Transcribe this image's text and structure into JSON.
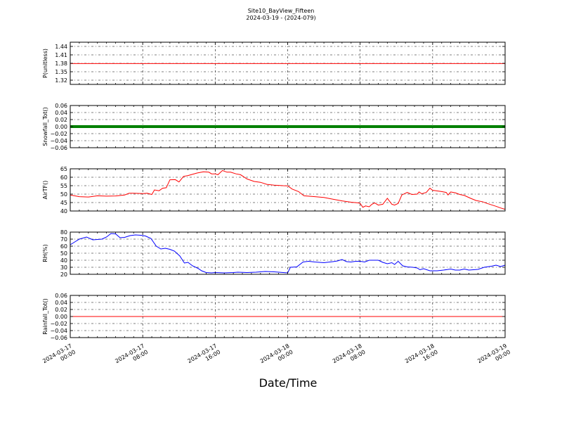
{
  "title": "Site10_BayView_Fifteen",
  "subtitle": "2024-03-19 - (2024-079)",
  "xlabel": "Date/Time",
  "x_ticks": [
    {
      "t": 0,
      "line1": "2024-03-17",
      "line2": "00:00"
    },
    {
      "t": 8,
      "line1": "2024-03-17",
      "line2": "08:00"
    },
    {
      "t": 16,
      "line1": "2024-03-17",
      "line2": "16:00"
    },
    {
      "t": 24,
      "line1": "2024-03-18",
      "line2": "00:00"
    },
    {
      "t": 32,
      "line1": "2024-03-18",
      "line2": "08:00"
    },
    {
      "t": 40,
      "line1": "2024-03-18",
      "line2": "16:00"
    },
    {
      "t": 48,
      "line1": "2024-03-19",
      "line2": "00:00"
    }
  ],
  "chart_data": [
    {
      "type": "line",
      "ylabel": "P(unitless)",
      "ylim": [
        1.305,
        1.455
      ],
      "yticks": [
        1.32,
        1.35,
        1.38,
        1.41,
        1.44
      ],
      "ytick_labels": [
        "1.32",
        "1.35",
        "1.38",
        "1.41",
        "1.44"
      ],
      "series": [
        {
          "color": "#ff0000",
          "points": [
            [
              0,
              1.379
            ],
            [
              48,
              1.379
            ]
          ]
        }
      ]
    },
    {
      "type": "line",
      "ylabel": "Snowfall_Tot()",
      "ylim": [
        -0.06,
        0.06
      ],
      "yticks": [
        -0.06,
        -0.04,
        -0.02,
        0.0,
        0.02,
        0.04,
        0.06
      ],
      "ytick_labels": [
        "−0.06",
        "−0.04",
        "−0.02",
        "0.00",
        "0.02",
        "0.04",
        "0.06"
      ],
      "series": [
        {
          "color": "#008000",
          "points": [
            [
              0,
              0.0
            ],
            [
              48,
              0.0
            ]
          ],
          "thick": true
        }
      ]
    },
    {
      "type": "line",
      "ylabel": "AirTF()",
      "ylim": [
        40,
        65
      ],
      "yticks": [
        40,
        45,
        50,
        55,
        60,
        65
      ],
      "ytick_labels": [
        "40",
        "45",
        "50",
        "55",
        "60",
        "65"
      ],
      "series": [
        {
          "color": "#ff0000",
          "points": [
            [
              0,
              49.5
            ],
            [
              1,
              48.5
            ],
            [
              2,
              48.3
            ],
            [
              3,
              49
            ],
            [
              4,
              48.8
            ],
            [
              5,
              48.9
            ],
            [
              6,
              49.5
            ],
            [
              6.5,
              50.5
            ],
            [
              7,
              50.5
            ],
            [
              8,
              50.3
            ],
            [
              8.5,
              50.5
            ],
            [
              9,
              49.8
            ],
            [
              9.3,
              52.5
            ],
            [
              9.8,
              52
            ],
            [
              10.2,
              53.5
            ],
            [
              10.6,
              53.8
            ],
            [
              11,
              58.5
            ],
            [
              11.6,
              58.6
            ],
            [
              12,
              57.2
            ],
            [
              12.5,
              60.5
            ],
            [
              13,
              61
            ],
            [
              14,
              62.5
            ],
            [
              14.7,
              63.2
            ],
            [
              15.3,
              63
            ],
            [
              15.6,
              62
            ],
            [
              16,
              62
            ],
            [
              16.3,
              61.5
            ],
            [
              16.8,
              64
            ],
            [
              17.3,
              63
            ],
            [
              17.7,
              63
            ],
            [
              18.3,
              62
            ],
            [
              18.8,
              61.5
            ],
            [
              19.5,
              59
            ],
            [
              20.3,
              57.5
            ],
            [
              21,
              57
            ],
            [
              21.7,
              55.8
            ],
            [
              22.5,
              55.3
            ],
            [
              23.5,
              55
            ],
            [
              24,
              54.9
            ],
            [
              24.5,
              53
            ],
            [
              25.2,
              51.5
            ],
            [
              25.8,
              49
            ],
            [
              27,
              48.5
            ],
            [
              28,
              48
            ],
            [
              29,
              47
            ],
            [
              30,
              46
            ],
            [
              31,
              45.2
            ],
            [
              31.8,
              44.8
            ],
            [
              32,
              44.5
            ],
            [
              32.3,
              42.2
            ],
            [
              32.6,
              43
            ],
            [
              33,
              42.5
            ],
            [
              33.3,
              44
            ],
            [
              33.6,
              44.8
            ],
            [
              34,
              43.5
            ],
            [
              34.5,
              44
            ],
            [
              35,
              47.5
            ],
            [
              35.5,
              44
            ],
            [
              35.8,
              43.5
            ],
            [
              36.2,
              44.5
            ],
            [
              36.6,
              49.5
            ],
            [
              37.2,
              51
            ],
            [
              37.7,
              49.8
            ],
            [
              38.3,
              50
            ],
            [
              38.5,
              51.3
            ],
            [
              38.8,
              50.2
            ],
            [
              39.3,
              51
            ],
            [
              39.7,
              53.5
            ],
            [
              40,
              52.3
            ],
            [
              41,
              51.5
            ],
            [
              41.5,
              51
            ],
            [
              41.7,
              49.5
            ],
            [
              42,
              51.3
            ],
            [
              42.5,
              50.8
            ],
            [
              43,
              49.8
            ],
            [
              43.5,
              49.2
            ],
            [
              44.2,
              47.5
            ],
            [
              44.8,
              46.2
            ],
            [
              45.5,
              45.5
            ],
            [
              46,
              44.5
            ],
            [
              47,
              42.8
            ],
            [
              47.5,
              41.8
            ],
            [
              48,
              41
            ]
          ]
        }
      ]
    },
    {
      "type": "line",
      "ylabel": "RH(%)",
      "ylim": [
        20,
        80
      ],
      "yticks": [
        20,
        30,
        40,
        50,
        60,
        70,
        80
      ],
      "ytick_labels": [
        "20",
        "30",
        "40",
        "50",
        "60",
        "70",
        "80"
      ],
      "series": [
        {
          "color": "#0000ff",
          "points": [
            [
              0,
              62
            ],
            [
              0.5,
              66
            ],
            [
              1,
              70
            ],
            [
              1.8,
              73
            ],
            [
              2.5,
              69
            ],
            [
              3.5,
              70
            ],
            [
              4,
              73
            ],
            [
              4.5,
              78
            ],
            [
              5,
              77.5
            ],
            [
              5.5,
              72
            ],
            [
              6,
              72.5
            ],
            [
              6.6,
              75
            ],
            [
              7.2,
              76
            ],
            [
              7.8,
              75.5
            ],
            [
              8.3,
              74.5
            ],
            [
              8.9,
              71
            ],
            [
              9.5,
              60
            ],
            [
              10,
              56
            ],
            [
              10.5,
              57
            ],
            [
              11,
              55.5
            ],
            [
              11.5,
              53
            ],
            [
              12.1,
              46
            ],
            [
              12.6,
              36
            ],
            [
              13,
              37
            ],
            [
              13.5,
              32
            ],
            [
              14.1,
              28.5
            ],
            [
              14.5,
              25
            ],
            [
              15,
              22.5
            ],
            [
              15.6,
              22
            ],
            [
              16,
              22.5
            ],
            [
              17,
              22
            ],
            [
              18,
              22.5
            ],
            [
              18.5,
              23
            ],
            [
              19.5,
              22.5
            ],
            [
              20.5,
              23
            ],
            [
              21.5,
              24
            ],
            [
              22.5,
              23.5
            ],
            [
              23.5,
              22.5
            ],
            [
              24,
              22
            ],
            [
              24.3,
              30
            ],
            [
              25,
              30.5
            ],
            [
              25.7,
              37.5
            ],
            [
              26.3,
              38.5
            ],
            [
              27,
              37.5
            ],
            [
              27.5,
              37
            ],
            [
              28,
              36.5
            ],
            [
              29,
              38
            ],
            [
              29.5,
              39
            ],
            [
              30,
              41
            ],
            [
              30.5,
              38
            ],
            [
              31,
              37.5
            ],
            [
              31.5,
              38.5
            ],
            [
              32,
              38.5
            ],
            [
              32.5,
              37.5
            ],
            [
              33,
              40
            ],
            [
              33.6,
              40
            ],
            [
              34,
              40
            ],
            [
              34.5,
              37
            ],
            [
              35,
              35
            ],
            [
              35.5,
              36.5
            ],
            [
              35.8,
              34
            ],
            [
              36.2,
              38.5
            ],
            [
              36.7,
              32
            ],
            [
              37.2,
              30.5
            ],
            [
              37.8,
              30
            ],
            [
              38.3,
              29
            ],
            [
              38.6,
              26.5
            ],
            [
              39,
              28
            ],
            [
              39.7,
              25
            ],
            [
              40.5,
              25
            ],
            [
              41.2,
              26
            ],
            [
              42,
              27.5
            ],
            [
              42.5,
              26
            ],
            [
              43,
              26
            ],
            [
              43.5,
              27.5
            ],
            [
              44,
              26
            ],
            [
              45,
              27
            ],
            [
              45.7,
              30
            ],
            [
              46.5,
              31.5
            ],
            [
              47,
              33
            ],
            [
              47.5,
              31
            ],
            [
              48,
              33
            ]
          ]
        }
      ]
    },
    {
      "type": "line",
      "ylabel": "Rainfall_Tot()",
      "ylim": [
        -0.06,
        0.06
      ],
      "yticks": [
        -0.06,
        -0.04,
        -0.02,
        0.0,
        0.02,
        0.04,
        0.06
      ],
      "ytick_labels": [
        "−0.06",
        "−0.04",
        "−0.02",
        "0.00",
        "0.02",
        "0.04",
        "0.06"
      ],
      "series": [
        {
          "color": "#ff0000",
          "points": [
            [
              0,
              0.0
            ],
            [
              48,
              0.0
            ]
          ]
        }
      ]
    }
  ]
}
